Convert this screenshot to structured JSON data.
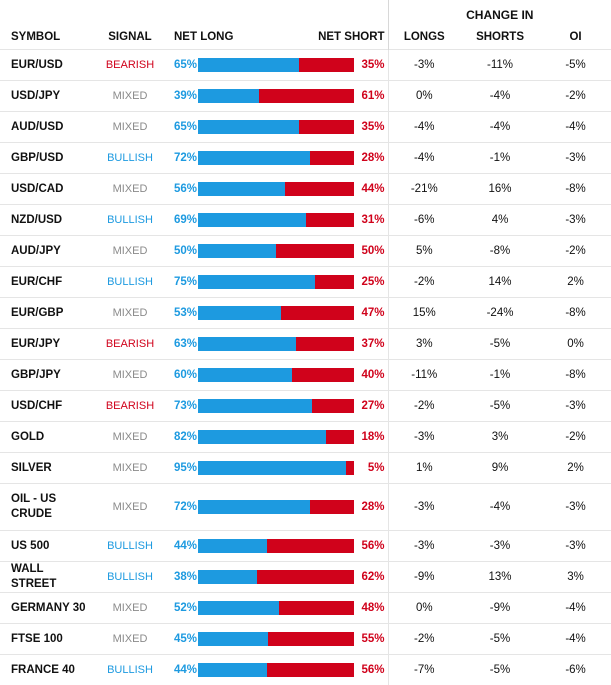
{
  "header": {
    "change_in": "CHANGE IN",
    "symbol": "SYMBOL",
    "signal": "SIGNAL",
    "net_long": "NET LONG",
    "net_short": "NET SHORT",
    "longs": "LONGS",
    "shorts": "SHORTS",
    "oi": "OI"
  },
  "colors": {
    "long_blue": "#1d9ae0",
    "short_red": "#d0021b",
    "mixed_gray": "#8a8a8a"
  },
  "rows": [
    {
      "symbol": "EUR/USD",
      "signal": "BEARISH",
      "net_long": "65%",
      "net_short": "35%",
      "long_fraction": 65,
      "longs": "-3%",
      "shorts": "-11%",
      "oi": "-5%"
    },
    {
      "symbol": "USD/JPY",
      "signal": "MIXED",
      "net_long": "39%",
      "net_short": "61%",
      "long_fraction": 39,
      "longs": "0%",
      "shorts": "-4%",
      "oi": "-2%"
    },
    {
      "symbol": "AUD/USD",
      "signal": "MIXED",
      "net_long": "65%",
      "net_short": "35%",
      "long_fraction": 65,
      "longs": "-4%",
      "shorts": "-4%",
      "oi": "-4%"
    },
    {
      "symbol": "GBP/USD",
      "signal": "BULLISH",
      "net_long": "72%",
      "net_short": "28%",
      "long_fraction": 72,
      "longs": "-4%",
      "shorts": "-1%",
      "oi": "-3%"
    },
    {
      "symbol": "USD/CAD",
      "signal": "MIXED",
      "net_long": "56%",
      "net_short": "44%",
      "long_fraction": 56,
      "longs": "-21%",
      "shorts": "16%",
      "oi": "-8%"
    },
    {
      "symbol": "NZD/USD",
      "signal": "BULLISH",
      "net_long": "69%",
      "net_short": "31%",
      "long_fraction": 69,
      "longs": "-6%",
      "shorts": "4%",
      "oi": "-3%"
    },
    {
      "symbol": "AUD/JPY",
      "signal": "MIXED",
      "net_long": "50%",
      "net_short": "50%",
      "long_fraction": 50,
      "longs": "5%",
      "shorts": "-8%",
      "oi": "-2%"
    },
    {
      "symbol": "EUR/CHF",
      "signal": "BULLISH",
      "net_long": "75%",
      "net_short": "25%",
      "long_fraction": 75,
      "longs": "-2%",
      "shorts": "14%",
      "oi": "2%"
    },
    {
      "symbol": "EUR/GBP",
      "signal": "MIXED",
      "net_long": "53%",
      "net_short": "47%",
      "long_fraction": 53,
      "longs": "15%",
      "shorts": "-24%",
      "oi": "-8%"
    },
    {
      "symbol": "EUR/JPY",
      "signal": "BEARISH",
      "net_long": "63%",
      "net_short": "37%",
      "long_fraction": 63,
      "longs": "3%",
      "shorts": "-5%",
      "oi": "0%"
    },
    {
      "symbol": "GBP/JPY",
      "signal": "MIXED",
      "net_long": "60%",
      "net_short": "40%",
      "long_fraction": 60,
      "longs": "-11%",
      "shorts": "-1%",
      "oi": "-8%"
    },
    {
      "symbol": "USD/CHF",
      "signal": "BEARISH",
      "net_long": "73%",
      "net_short": "27%",
      "long_fraction": 73,
      "longs": "-2%",
      "shorts": "-5%",
      "oi": "-3%"
    },
    {
      "symbol": "GOLD",
      "signal": "MIXED",
      "net_long": "82%",
      "net_short": "18%",
      "long_fraction": 82,
      "longs": "-3%",
      "shorts": "3%",
      "oi": "-2%"
    },
    {
      "symbol": "SILVER",
      "signal": "MIXED",
      "net_long": "95%",
      "net_short": "5%",
      "long_fraction": 95,
      "longs": "1%",
      "shorts": "9%",
      "oi": "2%"
    },
    {
      "symbol": "OIL - US CRUDE",
      "signal": "MIXED",
      "net_long": "72%",
      "net_short": "28%",
      "long_fraction": 72,
      "longs": "-3%",
      "shorts": "-4%",
      "oi": "-3%"
    },
    {
      "symbol": "US 500",
      "signal": "BULLISH",
      "net_long": "44%",
      "net_short": "56%",
      "long_fraction": 44,
      "longs": "-3%",
      "shorts": "-3%",
      "oi": "-3%"
    },
    {
      "symbol": "WALL STREET",
      "signal": "BULLISH",
      "net_long": "38%",
      "net_short": "62%",
      "long_fraction": 38,
      "longs": "-9%",
      "shorts": "13%",
      "oi": "3%"
    },
    {
      "symbol": "GERMANY 30",
      "signal": "MIXED",
      "net_long": "52%",
      "net_short": "48%",
      "long_fraction": 52,
      "longs": "0%",
      "shorts": "-9%",
      "oi": "-4%"
    },
    {
      "symbol": "FTSE 100",
      "signal": "MIXED",
      "net_long": "45%",
      "net_short": "55%",
      "long_fraction": 45,
      "longs": "-2%",
      "shorts": "-5%",
      "oi": "-4%"
    },
    {
      "symbol": "FRANCE 40",
      "signal": "BULLISH",
      "net_long": "44%",
      "net_short": "56%",
      "long_fraction": 44,
      "longs": "-7%",
      "shorts": "-5%",
      "oi": "-6%"
    }
  ]
}
